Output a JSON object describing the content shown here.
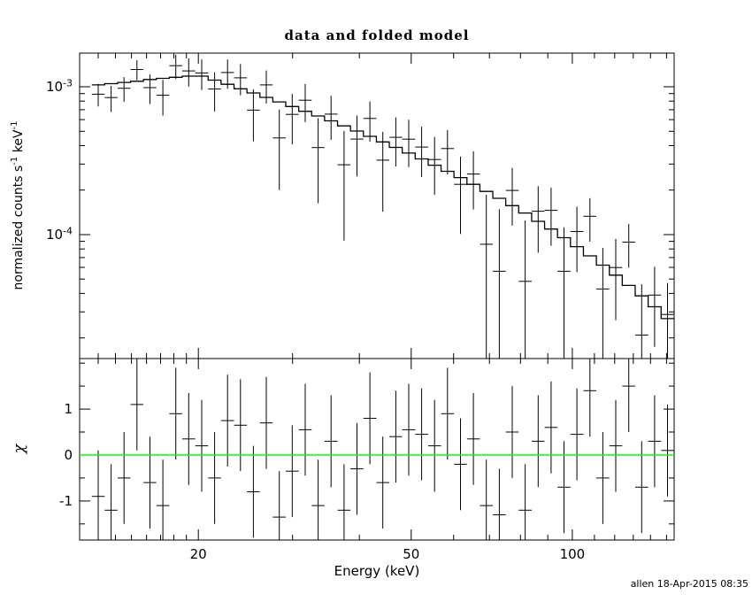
{
  "title": "data and folded model",
  "xlabel": "Energy (keV)",
  "footer": "allen 18-Apr-2015 08:35",
  "colors": {
    "foreground": "#000000",
    "background": "#ffffff",
    "model_line": "#000000",
    "zero_line": "#00ff00"
  },
  "chart_data": [
    {
      "type": "scatter",
      "panel": "spectrum",
      "title": "data and folded model",
      "xlabel": "Energy (keV)",
      "ylabel": "normalized counts s^{-1} keV^{-1}",
      "xscale": "log",
      "yscale": "log",
      "xlim": [
        12,
        155
      ],
      "ylim": [
        1.45e-05,
        0.00169
      ],
      "grid": false,
      "legend": "none",
      "x_ticks": [
        {
          "value": 20,
          "label": "20"
        },
        {
          "value": 50,
          "label": "50"
        },
        {
          "value": 100,
          "label": "100"
        }
      ],
      "y_ticks": [
        {
          "value": 0.001,
          "label": "10^{-3}"
        },
        {
          "value": 0.0001,
          "label": "10^{-4}"
        }
      ],
      "energies": [
        13.0,
        13.74,
        14.53,
        15.36,
        16.24,
        17.17,
        18.15,
        19.19,
        20.29,
        21.45,
        22.68,
        23.98,
        25.35,
        26.8,
        28.34,
        29.96,
        31.68,
        33.49,
        35.41,
        37.44,
        39.58,
        41.85,
        44.25,
        46.78,
        49.46,
        52.29,
        55.29,
        58.45,
        61.8,
        65.34,
        69.08,
        73.04,
        77.22,
        81.64,
        86.32,
        91.26,
        96.49,
        102.01,
        107.87,
        114.04,
        120.57,
        127.48,
        134.78,
        142.5,
        150.66
      ],
      "data": [
        0.000891,
        0.000846,
        0.000977,
        0.00131,
        0.000987,
        0.000877,
        0.00139,
        0.00128,
        0.00124,
        0.000967,
        0.00125,
        0.00115,
        0.000695,
        0.00103,
        0.000451,
        0.000651,
        0.000811,
        0.000388,
        0.000653,
        0.000297,
        0.000443,
        0.000611,
        0.000319,
        0.000455,
        0.000442,
        0.000391,
        0.000322,
        0.000382,
        0.000219,
        0.000257,
        8.6e-05,
        5.65e-05,
        0.000199,
        4.83e-05,
        0.000144,
        0.000146,
        5.65e-05,
        0.000105,
        0.000133,
        4.29e-05,
        5.99e-05,
        8.89e-05,
        2.09e-05,
        3.9e-05,
        2.88e-05
      ],
      "errors": [
        0.000155,
        0.00017,
        0.000186,
        0.000203,
        0.000222,
        0.000239,
        0.000258,
        0.000276,
        0.00029,
        0.000286,
        0.000281,
        0.000274,
        0.000267,
        0.00026,
        0.000251,
        0.000243,
        0.000234,
        0.000225,
        0.000215,
        0.000206,
        0.000196,
        0.000186,
        0.000176,
        0.000166,
        0.000156,
        0.000146,
        0.000136,
        0.000127,
        0.000118,
        0.000109,
        0.0001,
        9.19e-05,
        8.38e-05,
        7.64e-05,
        6.86e-05,
        6.21e-05,
        5.55e-05,
        4.92e-05,
        4.35e-05,
        3.84e-05,
        3.35e-05,
        2.91e-05,
        2.52e-05,
        2.16e-05,
        1.83e-05
      ],
      "model": [
        0.00103,
        0.00105,
        0.00107,
        0.00109,
        0.00112,
        0.00114,
        0.00116,
        0.00118,
        0.00118,
        0.00111,
        0.00104,
        0.00097,
        0.000908,
        0.000848,
        0.00079,
        0.000736,
        0.000683,
        0.000635,
        0.000588,
        0.000544,
        0.000502,
        0.000462,
        0.000424,
        0.000389,
        0.000356,
        0.000325,
        0.000295,
        0.000268,
        0.000243,
        0.000219,
        0.000196,
        0.000176,
        0.000157,
        0.00014,
        0.000123,
        0.000109,
        9.53e-05,
        8.29e-05,
        7.18e-05,
        6.21e-05,
        5.32e-05,
        4.53e-05,
        3.85e-05,
        3.25e-05,
        2.7e-05
      ]
    },
    {
      "type": "scatter",
      "panel": "residuals",
      "ylabel": "χ",
      "xscale": "log",
      "yscale": "linear",
      "xlim": [
        12,
        155
      ],
      "ylim": [
        -1.85,
        2.1
      ],
      "grid": false,
      "y_ticks": [
        {
          "value": 1,
          "label": "1"
        },
        {
          "value": 0,
          "label": "0"
        },
        {
          "value": -1,
          "label": "-1"
        }
      ],
      "chi": [
        -0.9,
        -1.2,
        -0.5,
        1.1,
        -0.6,
        -1.1,
        0.9,
        0.35,
        0.2,
        -0.5,
        0.75,
        0.65,
        -0.8,
        0.7,
        -1.35,
        -0.35,
        0.55,
        -1.1,
        0.3,
        -1.2,
        -0.3,
        0.8,
        -0.6,
        0.4,
        0.55,
        0.45,
        0.2,
        0.9,
        -0.2,
        0.35,
        -1.1,
        -1.3,
        0.5,
        -1.2,
        0.3,
        0.6,
        -0.7,
        0.45,
        1.4,
        -0.5,
        0.2,
        1.5,
        -0.7,
        0.3,
        0.1
      ],
      "chi_err": 1.0,
      "zero_line": 0
    }
  ]
}
